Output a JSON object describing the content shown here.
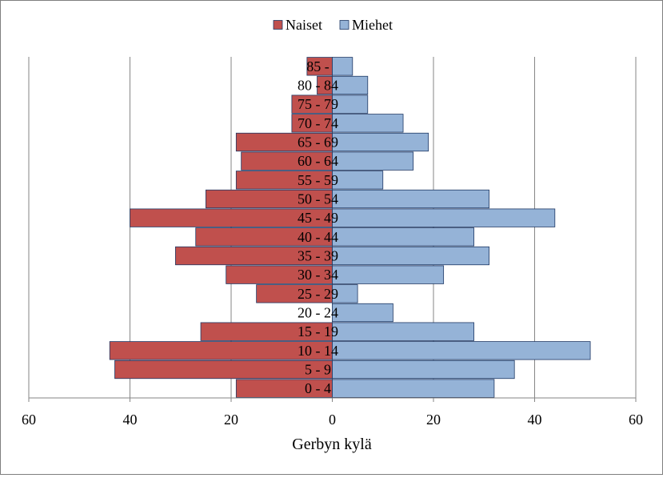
{
  "chart_data": {
    "type": "bar",
    "orientation": "horizontal-population-pyramid",
    "title": "",
    "xlabel": "Gerbyn kylä",
    "ylabel": "",
    "xlim": [
      -60,
      60
    ],
    "x_ticks": [
      -60,
      -40,
      -20,
      0,
      20,
      40,
      60
    ],
    "x_tick_labels": [
      "60",
      "40",
      "20",
      "0",
      "20",
      "40",
      "60"
    ],
    "grid": "vertical",
    "legend_position": "top",
    "categories": [
      "0 - 4",
      "5 - 9",
      "10 - 14",
      "15 - 19",
      "20 - 24",
      "25 - 29",
      "30 - 34",
      "35 - 39",
      "40 - 44",
      "45 - 49",
      "50 - 54",
      "55 - 59",
      "60 - 64",
      "65 - 69",
      "70 - 74",
      "75 - 79",
      "80 - 84",
      "85 -"
    ],
    "series": [
      {
        "name": "Naiset",
        "side": "left",
        "color": "#c0504d",
        "values": [
          19,
          43,
          44,
          26,
          0,
          15,
          21,
          31,
          27,
          40,
          25,
          19,
          18,
          19,
          8,
          8,
          3,
          5
        ]
      },
      {
        "name": "Miehet",
        "side": "right",
        "color": "#95b3d7",
        "values": [
          32,
          36,
          51,
          28,
          12,
          5,
          22,
          31,
          28,
          44,
          31,
          10,
          16,
          19,
          14,
          7,
          7,
          4
        ]
      }
    ]
  }
}
